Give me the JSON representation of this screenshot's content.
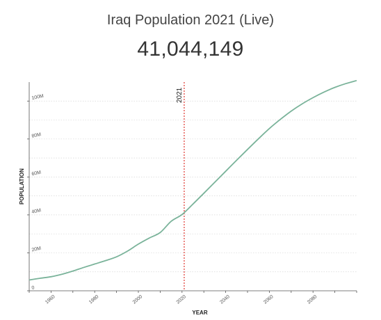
{
  "header": {
    "title": "Iraq Population 2021 (Live)",
    "live_count": "41,044,149"
  },
  "chart_data": {
    "type": "line",
    "xlabel": "YEAR",
    "ylabel": "POPULATION",
    "xlim": [
      1950,
      2100
    ],
    "ylim": [
      0,
      110000000
    ],
    "x_ticks": [
      1960,
      1980,
      2000,
      2020,
      2040,
      2060,
      2080
    ],
    "y_ticks": [
      {
        "value": 0,
        "label": "0"
      },
      {
        "value": 20000000,
        "label": "20M"
      },
      {
        "value": 40000000,
        "label": "40M"
      },
      {
        "value": 60000000,
        "label": "60M"
      },
      {
        "value": 80000000,
        "label": "80M"
      },
      {
        "value": 100000000,
        "label": "100M"
      }
    ],
    "grid_values": [
      10000000,
      20000000,
      30000000,
      40000000,
      50000000,
      60000000,
      70000000,
      80000000,
      90000000,
      100000000
    ],
    "marker": {
      "x": 2021,
      "label": "2021",
      "color": "#e0332c"
    },
    "line_color": "#7ab39a",
    "series": [
      {
        "x": [
          1950,
          1955,
          1960,
          1965,
          1970,
          1975,
          1980,
          1985,
          1990,
          1995,
          2000,
          2005,
          2010,
          2015,
          2020,
          2025,
          2030,
          2035,
          2040,
          2045,
          2050,
          2055,
          2060,
          2065,
          2070,
          2075,
          2080,
          2085,
          2090,
          2095,
          2100
        ],
        "y": [
          5700000,
          6600000,
          7400000,
          8700000,
          10400000,
          12300000,
          14100000,
          15900000,
          17900000,
          20900000,
          24600000,
          27800000,
          30700000,
          36600000,
          40200000,
          45700000,
          51400000,
          57200000,
          63000000,
          68800000,
          74500000,
          80100000,
          85500000,
          90300000,
          94700000,
          98500000,
          101800000,
          104700000,
          107200000,
          109200000,
          110800000
        ]
      }
    ]
  }
}
